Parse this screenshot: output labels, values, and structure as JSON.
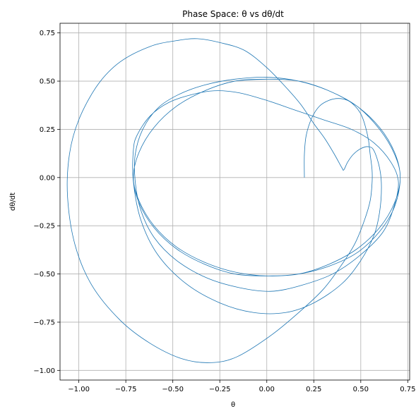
{
  "chart_data": {
    "type": "line",
    "title": "Phase Space: θ vs dθ/dt",
    "xlabel": "θ",
    "ylabel": "dθ/dt",
    "xlim": [
      -1.1,
      0.76
    ],
    "ylim": [
      -1.05,
      0.8
    ],
    "xticks": [
      -1.0,
      -0.75,
      -0.5,
      -0.25,
      0.0,
      0.25,
      0.5,
      0.75
    ],
    "xtick_labels": [
      "−1.00",
      "−0.75",
      "−0.50",
      "−0.25",
      "0.00",
      "0.25",
      "0.50",
      "0.75"
    ],
    "yticks": [
      -1.0,
      -0.75,
      -0.5,
      -0.25,
      0.0,
      0.25,
      0.5,
      0.75
    ],
    "ytick_labels": [
      "−1.00",
      "−0.75",
      "−0.50",
      "−0.25",
      "0.00",
      "0.25",
      "0.50",
      "0.75"
    ],
    "grid": true,
    "line_color": "#1f77b4",
    "series": [
      {
        "values": [
          [
            0.2,
            0.0
          ],
          [
            0.2,
            0.12
          ],
          [
            0.21,
            0.22
          ],
          [
            0.24,
            0.31
          ],
          [
            0.28,
            0.37
          ],
          [
            0.33,
            0.4
          ],
          [
            0.38,
            0.41
          ],
          [
            0.43,
            0.4
          ],
          [
            0.47,
            0.37
          ],
          [
            0.5,
            0.33
          ],
          [
            0.52,
            0.28
          ],
          [
            0.54,
            0.2
          ],
          [
            0.55,
            0.12
          ],
          [
            0.56,
            0.04
          ],
          [
            0.56,
            -0.03
          ],
          [
            0.55,
            -0.12
          ],
          [
            0.52,
            -0.22
          ],
          [
            0.47,
            -0.34
          ],
          [
            0.4,
            -0.45
          ],
          [
            0.3,
            -0.58
          ],
          [
            0.17,
            -0.7
          ],
          [
            0.02,
            -0.82
          ],
          [
            -0.16,
            -0.93
          ],
          [
            -0.3,
            -0.96
          ],
          [
            -0.45,
            -0.94
          ],
          [
            -0.62,
            -0.86
          ],
          [
            -0.78,
            -0.74
          ],
          [
            -0.93,
            -0.56
          ],
          [
            -1.02,
            -0.35
          ],
          [
            -1.06,
            -0.1
          ],
          [
            -1.05,
            0.12
          ],
          [
            -1.0,
            0.3
          ],
          [
            -0.9,
            0.48
          ],
          [
            -0.78,
            0.6
          ],
          [
            -0.62,
            0.68
          ],
          [
            -0.48,
            0.71
          ],
          [
            -0.37,
            0.72
          ],
          [
            -0.25,
            0.7
          ],
          [
            -0.12,
            0.66
          ],
          [
            0.0,
            0.57
          ],
          [
            0.1,
            0.47
          ],
          [
            0.18,
            0.38
          ],
          [
            0.25,
            0.28
          ],
          [
            0.31,
            0.2
          ],
          [
            0.36,
            0.12
          ],
          [
            0.4,
            0.05
          ],
          [
            0.41,
            0.04
          ],
          [
            0.43,
            0.08
          ],
          [
            0.46,
            0.12
          ],
          [
            0.5,
            0.15
          ],
          [
            0.54,
            0.16
          ],
          [
            0.57,
            0.14
          ],
          [
            0.6,
            0.05
          ],
          [
            0.61,
            -0.05
          ],
          [
            0.6,
            -0.18
          ],
          [
            0.57,
            -0.3
          ],
          [
            0.5,
            -0.43
          ],
          [
            0.4,
            -0.55
          ],
          [
            0.25,
            -0.65
          ],
          [
            0.1,
            -0.7
          ],
          [
            -0.07,
            -0.7
          ],
          [
            -0.25,
            -0.65
          ],
          [
            -0.43,
            -0.55
          ],
          [
            -0.58,
            -0.4
          ],
          [
            -0.67,
            -0.22
          ],
          [
            -0.71,
            -0.02
          ],
          [
            -0.71,
            0.14
          ],
          [
            -0.69,
            0.22
          ],
          [
            -0.62,
            0.32
          ],
          [
            -0.52,
            0.39
          ],
          [
            -0.4,
            0.43
          ],
          [
            -0.28,
            0.45
          ],
          [
            -0.15,
            0.44
          ],
          [
            0.0,
            0.4
          ],
          [
            0.15,
            0.35
          ],
          [
            0.3,
            0.3
          ],
          [
            0.45,
            0.25
          ],
          [
            0.57,
            0.18
          ],
          [
            0.66,
            0.08
          ],
          [
            0.7,
            -0.02
          ],
          [
            0.68,
            -0.14
          ],
          [
            0.62,
            -0.28
          ],
          [
            0.5,
            -0.4
          ],
          [
            0.35,
            -0.5
          ],
          [
            0.18,
            -0.56
          ],
          [
            0.02,
            -0.59
          ],
          [
            -0.15,
            -0.57
          ],
          [
            -0.32,
            -0.52
          ],
          [
            -0.48,
            -0.43
          ],
          [
            -0.6,
            -0.31
          ],
          [
            -0.67,
            -0.17
          ],
          [
            -0.7,
            -0.02
          ],
          [
            -0.7,
            0.12
          ],
          [
            -0.66,
            0.25
          ],
          [
            -0.58,
            0.36
          ],
          [
            -0.47,
            0.43
          ],
          [
            -0.33,
            0.48
          ],
          [
            -0.17,
            0.51
          ],
          [
            0.0,
            0.52
          ],
          [
            0.17,
            0.5
          ],
          [
            0.33,
            0.45
          ],
          [
            0.48,
            0.37
          ],
          [
            0.6,
            0.25
          ],
          [
            0.68,
            0.12
          ],
          [
            0.71,
            0.0
          ],
          [
            0.68,
            -0.15
          ],
          [
            0.6,
            -0.28
          ],
          [
            0.48,
            -0.39
          ],
          [
            0.33,
            -0.46
          ],
          [
            0.17,
            -0.5
          ],
          [
            0.0,
            -0.51
          ],
          [
            -0.17,
            -0.49
          ],
          [
            -0.33,
            -0.44
          ],
          [
            -0.48,
            -0.36
          ],
          [
            -0.6,
            -0.25
          ],
          [
            -0.68,
            -0.12
          ],
          [
            -0.71,
            0.0
          ],
          [
            -0.68,
            0.13
          ],
          [
            -0.6,
            0.26
          ],
          [
            -0.48,
            0.37
          ],
          [
            -0.33,
            0.45
          ],
          [
            -0.17,
            0.5
          ],
          [
            0.0,
            0.51
          ],
          [
            0.17,
            0.5
          ],
          [
            0.33,
            0.45
          ],
          [
            0.48,
            0.37
          ],
          [
            0.6,
            0.26
          ],
          [
            0.68,
            0.13
          ],
          [
            0.71,
            0.0
          ],
          [
            0.68,
            -0.13
          ],
          [
            0.6,
            -0.26
          ],
          [
            0.48,
            -0.37
          ],
          [
            0.33,
            -0.45
          ],
          [
            0.17,
            -0.5
          ],
          [
            0.0,
            -0.51
          ],
          [
            -0.17,
            -0.5
          ],
          [
            -0.33,
            -0.45
          ],
          [
            -0.48,
            -0.37
          ],
          [
            -0.6,
            -0.26
          ],
          [
            -0.68,
            -0.13
          ],
          [
            -0.71,
            0.0
          ],
          [
            -0.68,
            0.13
          ],
          [
            -0.6,
            0.26
          ],
          [
            -0.48,
            0.37
          ],
          [
            -0.33,
            0.45
          ],
          [
            -0.17,
            0.5
          ],
          [
            0.0,
            0.51
          ]
        ]
      }
    ]
  }
}
